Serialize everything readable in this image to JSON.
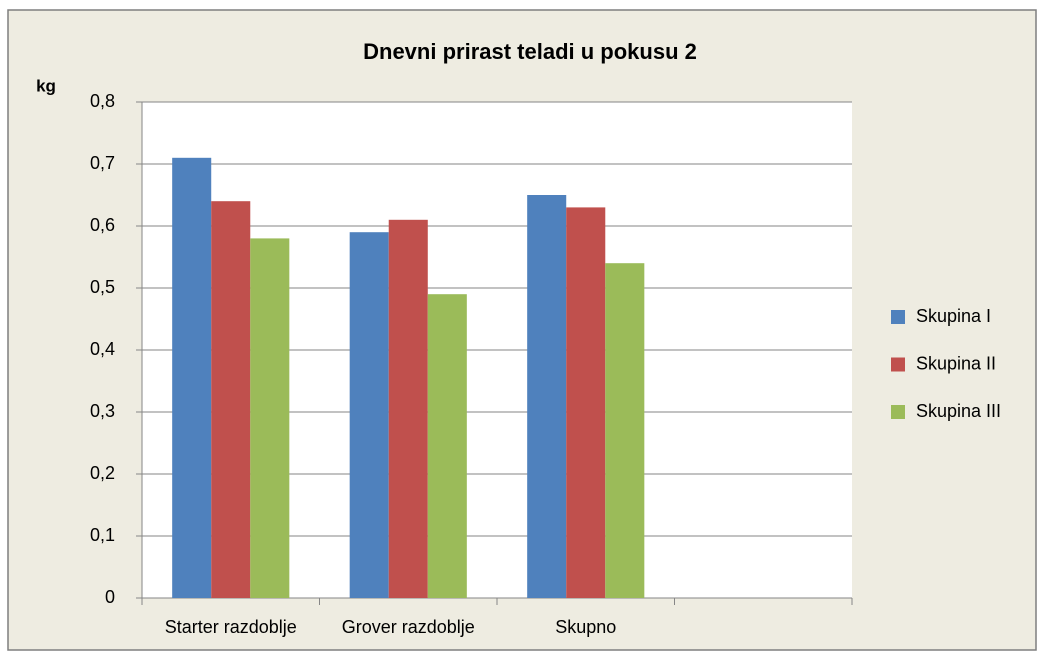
{
  "chart_data": {
    "type": "bar",
    "title": "Dnevni prirast teladi u pokusu 2",
    "y_label": "kg",
    "categories": [
      "Starter razdoblje",
      "Grover razdoblje",
      "Skupno",
      null
    ],
    "series": [
      {
        "name": "Skupina I",
        "color": "#4f81bd",
        "values": [
          0.71,
          0.59,
          0.65,
          null
        ]
      },
      {
        "name": "Skupina II",
        "color": "#c0504d",
        "values": [
          0.64,
          0.61,
          0.63,
          null
        ]
      },
      {
        "name": "Skupina III",
        "color": "#9bbb59",
        "values": [
          0.58,
          0.49,
          0.54,
          null
        ]
      }
    ],
    "ylim": [
      0,
      0.8
    ],
    "yticks": [
      0,
      {
        "value": 0.1,
        "label": "0,1"
      },
      {
        "value": 0.2,
        "label": "0,2"
      },
      {
        "value": 0.3,
        "label": "0,3"
      },
      {
        "value": 0.4,
        "label": "0,4"
      },
      {
        "value": 0.5,
        "label": "0,5"
      },
      {
        "value": 0.6,
        "label": "0,6"
      },
      {
        "value": 0.7,
        "label": "0,7"
      },
      {
        "value": 0.8,
        "label": "0,8"
      }
    ],
    "grid": true,
    "legend": "right"
  }
}
